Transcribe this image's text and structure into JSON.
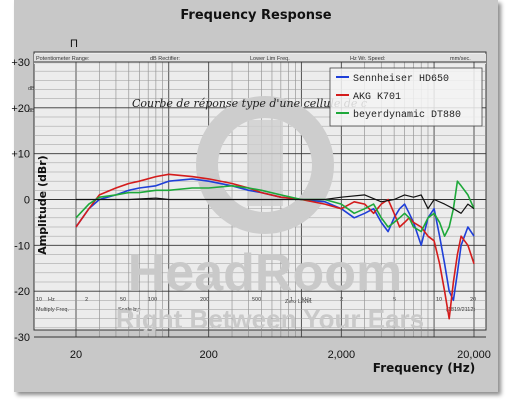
{
  "chart_data": {
    "type": "line",
    "title": "Frequency Response",
    "xlabel": "Frequency (Hz)",
    "ylabel": "Amplitude (dBr)",
    "x_scale": "log",
    "xlim": [
      20,
      20000
    ],
    "ylim": [
      -30,
      30
    ],
    "x_ticks": [
      "20",
      "200",
      "2,000",
      "20,000"
    ],
    "x_tick_values": [
      20,
      200,
      2000,
      20000
    ],
    "y_ticks": [
      "+30",
      "+20",
      "+10",
      "0",
      "-10",
      "-20",
      "-30"
    ],
    "y_tick_values": [
      30,
      20,
      10,
      0,
      -10,
      -20,
      -30
    ],
    "grid": true,
    "legend_position": "top-right",
    "series": [
      {
        "name": "Sennheiser HD650",
        "color": "#1f3fd8",
        "x": [
          20,
          25,
          30,
          40,
          50,
          60,
          80,
          100,
          150,
          200,
          300,
          400,
          500,
          700,
          1000,
          1500,
          2000,
          2500,
          3000,
          3500,
          4000,
          4500,
          5000,
          5500,
          6000,
          6500,
          7000,
          8000,
          9000,
          10000,
          11000,
          12000,
          13000,
          14000,
          15000,
          16000,
          18000,
          20000
        ],
        "y": [
          -6,
          -2,
          0,
          1,
          2,
          2.5,
          3,
          4,
          4.5,
          4,
          3,
          2,
          1.5,
          0.5,
          0,
          -0.5,
          -2,
          -4,
          -3,
          -2,
          -5,
          -7,
          -4,
          -2,
          -1,
          -3,
          -5,
          -10,
          -4,
          -2,
          -8,
          -14,
          -20,
          -22,
          -16,
          -10,
          -6,
          -8
        ]
      },
      {
        "name": "AKG K701",
        "color": "#d41c1c",
        "x": [
          20,
          25,
          30,
          40,
          50,
          60,
          80,
          100,
          150,
          200,
          300,
          400,
          500,
          700,
          1000,
          1500,
          2000,
          2500,
          3000,
          3500,
          4000,
          4500,
          5000,
          5500,
          6000,
          6500,
          7000,
          8000,
          9000,
          10000,
          11000,
          12000,
          13000,
          14000,
          15000,
          16000,
          18000,
          20000
        ],
        "y": [
          -6,
          -2,
          1,
          2.5,
          3.5,
          4,
          5,
          5.5,
          5,
          4.5,
          3.5,
          2.5,
          1.5,
          0.5,
          0,
          -1,
          -2,
          -0.5,
          -1,
          -3,
          -1,
          0,
          -3,
          -6,
          -5,
          -4,
          -5,
          -6,
          -8,
          -9,
          -14,
          -20,
          -26,
          -18,
          -12,
          -8,
          -10,
          -14
        ]
      },
      {
        "name": "beyerdynamic DT880",
        "color": "#1ea83a",
        "x": [
          20,
          25,
          30,
          40,
          50,
          60,
          80,
          100,
          150,
          200,
          300,
          400,
          500,
          700,
          1000,
          1500,
          2000,
          2500,
          3000,
          3500,
          4000,
          4500,
          5000,
          5500,
          6000,
          6500,
          7000,
          8000,
          9000,
          10000,
          11000,
          12000,
          13000,
          14000,
          15000,
          16000,
          18000,
          20000
        ],
        "y": [
          -4,
          -1,
          0.5,
          1,
          1.5,
          1.5,
          2,
          2,
          2.5,
          2.5,
          3,
          2.5,
          2,
          1,
          0,
          0,
          -1,
          -3,
          -2,
          -1,
          -4,
          -6,
          -5,
          -4,
          -3,
          -4,
          -6,
          -7,
          -4,
          -3,
          -5,
          -8,
          -6,
          -2,
          4,
          3,
          1,
          -2
        ]
      },
      {
        "x": [
          20,
          30,
          50,
          80,
          100,
          200,
          400,
          700,
          1000,
          1500,
          2000,
          3000,
          4000,
          5000,
          6000,
          7000,
          8000,
          9000,
          10000,
          12000,
          14000,
          16000,
          18000,
          20000
        ],
        "y": [
          0,
          0,
          0,
          0.3,
          0,
          0,
          0,
          0,
          0,
          0,
          0.5,
          1,
          -0.5,
          0,
          1,
          0.5,
          1,
          -2,
          0,
          -1,
          -2,
          -3,
          -1,
          -2
        ],
        "color": "#111111"
      }
    ]
  },
  "legend": [
    {
      "label": "Sennheiser HD650",
      "color": "#1f3fd8"
    },
    {
      "label": "AKG K701",
      "color": "#d41c1c"
    },
    {
      "label": "beyerdynamic DT880",
      "color": "#1ea83a"
    }
  ],
  "paper": {
    "top_labels": [
      "Potentiometer Range:",
      "dB Rectifier:",
      "Lower Lim Freq.",
      "Hz Wr. Speed:",
      "mm/sec."
    ],
    "bottom_labels": [
      "Multiply Freq.",
      "Scale by:",
      "Zero Level:",
      "(1819/2112)"
    ],
    "bottom_freqs": [
      "10",
      "Hz",
      "2",
      "50",
      "100",
      "200",
      "500",
      "1",
      "kHz",
      "2",
      "5",
      "10",
      "20"
    ],
    "left_scale": [
      "dB",
      "dB"
    ],
    "handwriting": "Courbe de réponse type d'une cellule de c",
    "stray_mark": "Π"
  },
  "watermark": {
    "title": "HeadRoom",
    "tagline": "Right Between Your Ears"
  }
}
